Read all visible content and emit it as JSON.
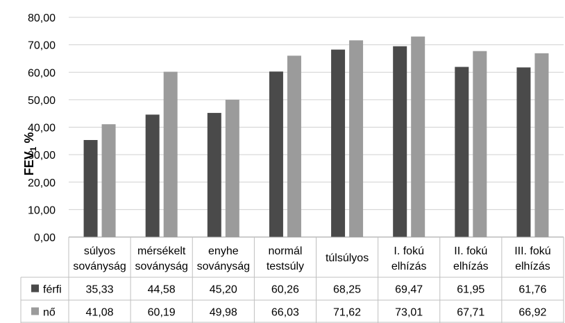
{
  "chart_data": {
    "type": "bar",
    "ylabel_main": "FEV",
    "ylabel_sub": "1",
    "ylabel_tail": " %",
    "ylim": [
      0,
      80
    ],
    "yticks": [
      "0,00",
      "10,00",
      "20,00",
      "30,00",
      "40,00",
      "50,00",
      "60,00",
      "70,00",
      "80,00"
    ],
    "grid": true,
    "categories": [
      [
        "súlyos",
        "soványság"
      ],
      [
        "mérsékelt",
        "soványság"
      ],
      [
        "enyhe",
        "soványság"
      ],
      [
        "normál",
        "testsúly"
      ],
      [
        "túlsúlyos"
      ],
      [
        "I. fokú",
        "elhízás"
      ],
      [
        "II. fokú",
        "elhízás"
      ],
      [
        "III. fokú",
        "elhízás"
      ]
    ],
    "series": [
      {
        "name": "férfi",
        "color": "#4a4a4a",
        "values": [
          35.33,
          44.58,
          45.2,
          60.26,
          68.25,
          69.47,
          61.95,
          61.76
        ],
        "labels": [
          "35,33",
          "44,58",
          "45,20",
          "60,26",
          "68,25",
          "69,47",
          "61,95",
          "61,76"
        ]
      },
      {
        "name": "nő",
        "color": "#9b9b9b",
        "values": [
          41.08,
          60.19,
          49.98,
          66.03,
          71.62,
          73.01,
          67.71,
          66.92
        ],
        "labels": [
          "41,08",
          "60,19",
          "49,98",
          "66,03",
          "71,62",
          "73,01",
          "67,71",
          "66,92"
        ]
      }
    ]
  }
}
